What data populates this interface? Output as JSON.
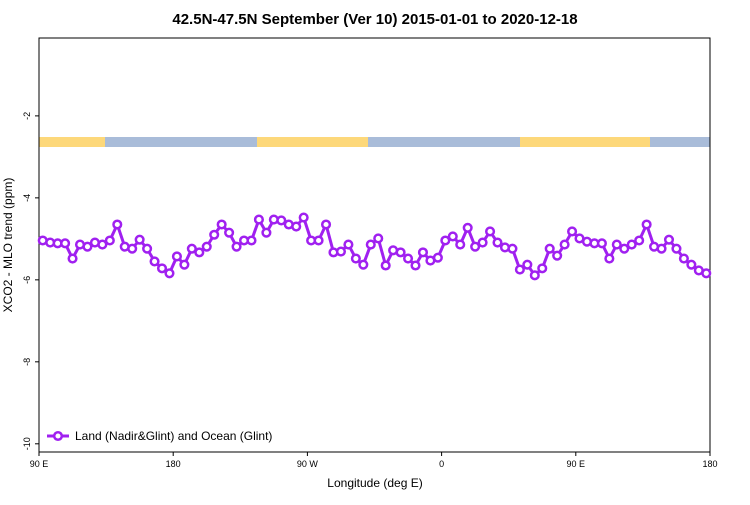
{
  "chart_data": {
    "type": "line",
    "title": "42.5N-47.5N September (Ver 10)   2015-01-01 to 2020-12-18",
    "x_label": "Longitude (deg E)",
    "y_label": "XCO2 - MLO trend (ppm)",
    "x": [
      92.5,
      97.5,
      102.5,
      107.5,
      112.5,
      117.5,
      122.5,
      127.5,
      132.5,
      137.5,
      142.5,
      147.5,
      152.5,
      157.5,
      162.5,
      167.5,
      172.5,
      177.5,
      182.5,
      187.5,
      192.5,
      197.5,
      202.5,
      207.5,
      212.5,
      217.5,
      222.5,
      227.5,
      232.5,
      237.5,
      242.5,
      247.5,
      252.5,
      257.5,
      262.5,
      267.5,
      272.5,
      277.5,
      282.5,
      287.5,
      292.5,
      297.5,
      302.5,
      307.5,
      312.5,
      317.5,
      322.5,
      327.5,
      332.5,
      337.5,
      342.5,
      347.5,
      352.5,
      357.5,
      362.5,
      367.5,
      372.5,
      377.5,
      382.5,
      387.5,
      392.5,
      397.5,
      402.5,
      407.5,
      412.5,
      417.5,
      422.5,
      427.5,
      432.5,
      437.5,
      442.5,
      447.5,
      452.5,
      457.5,
      462.5,
      467.5,
      472.5,
      477.5,
      482.5,
      487.5,
      492.5,
      497.5,
      502.5,
      507.5,
      512.5,
      517.5,
      522.5,
      527.5,
      532.5,
      537.5
    ],
    "series": [
      {
        "name": "Land (Nadir&Glint) and Ocean (Glint)",
        "color": "#a020f0",
        "values": [
          -5.04,
          -5.09,
          -5.11,
          -5.11,
          -5.48,
          -5.14,
          -5.19,
          -5.09,
          -5.14,
          -5.04,
          -4.65,
          -5.19,
          -5.24,
          -5.02,
          -5.24,
          -5.55,
          -5.72,
          -5.84,
          -5.43,
          -5.63,
          -5.24,
          -5.33,
          -5.19,
          -4.9,
          -4.65,
          -4.85,
          -5.19,
          -5.04,
          -5.04,
          -4.53,
          -4.85,
          -4.53,
          -4.55,
          -4.65,
          -4.7,
          -4.48,
          -5.04,
          -5.04,
          -4.65,
          -5.33,
          -5.31,
          -5.14,
          -5.48,
          -5.63,
          -5.14,
          -4.99,
          -5.65,
          -5.28,
          -5.33,
          -5.48,
          -5.65,
          -5.33,
          -5.53,
          -5.46,
          -5.04,
          -4.94,
          -5.14,
          -4.73,
          -5.19,
          -5.09,
          -4.82,
          -5.09,
          -5.21,
          -5.24,
          -5.75,
          -5.63,
          -5.89,
          -5.72,
          -5.24,
          -5.41,
          -5.14,
          -4.82,
          -4.99,
          -5.07,
          -5.11,
          -5.11,
          -5.48,
          -5.14,
          -5.24,
          -5.14,
          -5.04,
          -4.65,
          -5.19,
          -5.24,
          -5.02,
          -5.24,
          -5.48,
          -5.63,
          -5.77,
          -5.84
        ]
      }
    ],
    "xlim": [
      90,
      540
    ],
    "xticks": [
      {
        "value": 90,
        "label": "90 E"
      },
      {
        "value": 180,
        "label": "180"
      },
      {
        "value": 270,
        "label": "90 W"
      },
      {
        "value": 360,
        "label": "0"
      },
      {
        "value": 450,
        "label": "90 E"
      },
      {
        "value": 540,
        "label": "180"
      }
    ],
    "ylim": [
      -10.2,
      -0.1
    ],
    "yticks": [
      -10,
      -8,
      -6,
      -4,
      -2
    ],
    "legend": "bottom-left"
  }
}
